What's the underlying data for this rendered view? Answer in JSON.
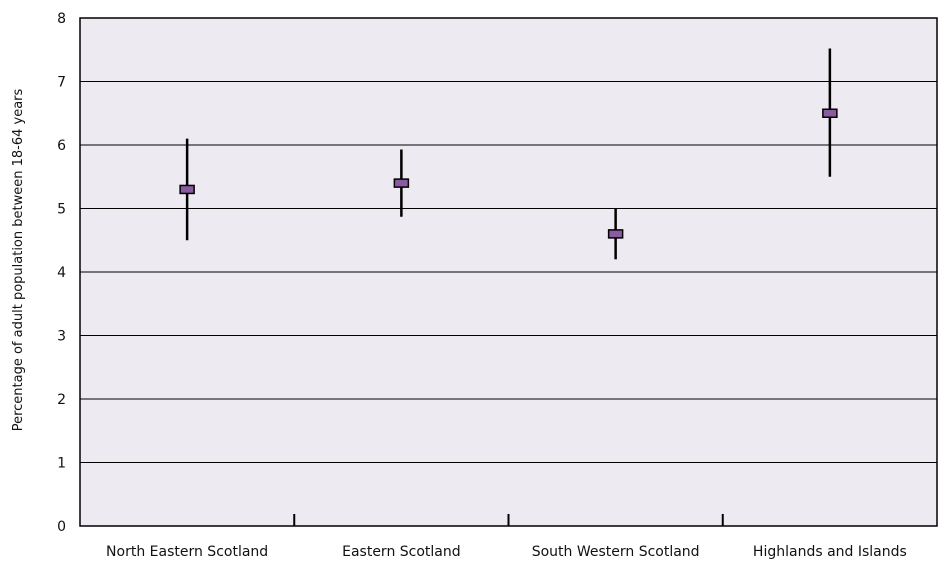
{
  "chart_data": {
    "type": "error-bar",
    "categories": [
      "North Eastern Scotland",
      "Eastern Scotland",
      "South Western Scotland",
      "Highlands and Islands"
    ],
    "series": [
      {
        "values": [
          5.3,
          5.4,
          4.6,
          6.5
        ],
        "lower": [
          4.5,
          4.87,
          4.2,
          5.5
        ],
        "upper": [
          6.1,
          5.93,
          5.0,
          7.52
        ]
      }
    ],
    "title": "",
    "xlabel": "",
    "ylabel": "Percentage of adult population between 18-64 years",
    "ylim": [
      0,
      8
    ],
    "yticks": [
      0,
      1,
      2,
      3,
      4,
      5,
      6,
      7,
      8
    ],
    "grid": "horizontal",
    "colors": {
      "plot_background": "#eeeaf2",
      "marker_fill": "#8a5ba1",
      "marker_stroke": "#000000",
      "gridline": "#000000",
      "error_bar": "#000000"
    }
  }
}
